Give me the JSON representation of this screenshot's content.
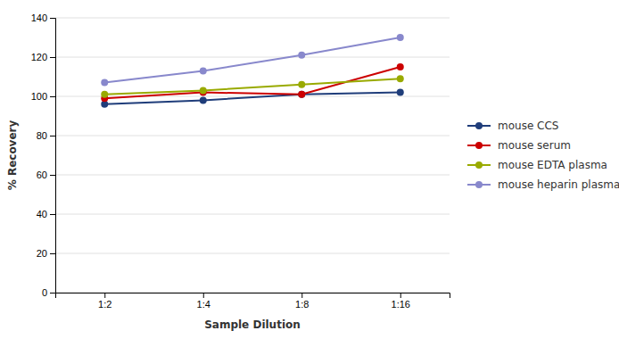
{
  "chart_data": {
    "type": "line",
    "xlabel": "Sample Dilution",
    "ylabel": "% Recovery",
    "categories": [
      "1:2",
      "1:4",
      "1:8",
      "1:16"
    ],
    "series": [
      {
        "name": "mouse CCS",
        "color": "#1f3d7a",
        "marker": "circle",
        "values": [
          96,
          98,
          101,
          102
        ]
      },
      {
        "name": "mouse serum",
        "color": "#cc0000",
        "marker": "circle",
        "values": [
          99,
          102,
          101,
          115
        ]
      },
      {
        "name": "mouse EDTA plasma",
        "color": "#99aa00",
        "marker": "circle",
        "values": [
          101,
          103,
          106,
          109
        ]
      },
      {
        "name": "mouse heparin plasma",
        "color": "#8888cc",
        "marker": "circle",
        "values": [
          107,
          113,
          121,
          130
        ]
      }
    ],
    "ylim": [
      0,
      140
    ],
    "yticks": [
      0,
      20,
      40,
      60,
      80,
      100,
      120,
      140
    ],
    "grid": true,
    "legend": "right"
  }
}
